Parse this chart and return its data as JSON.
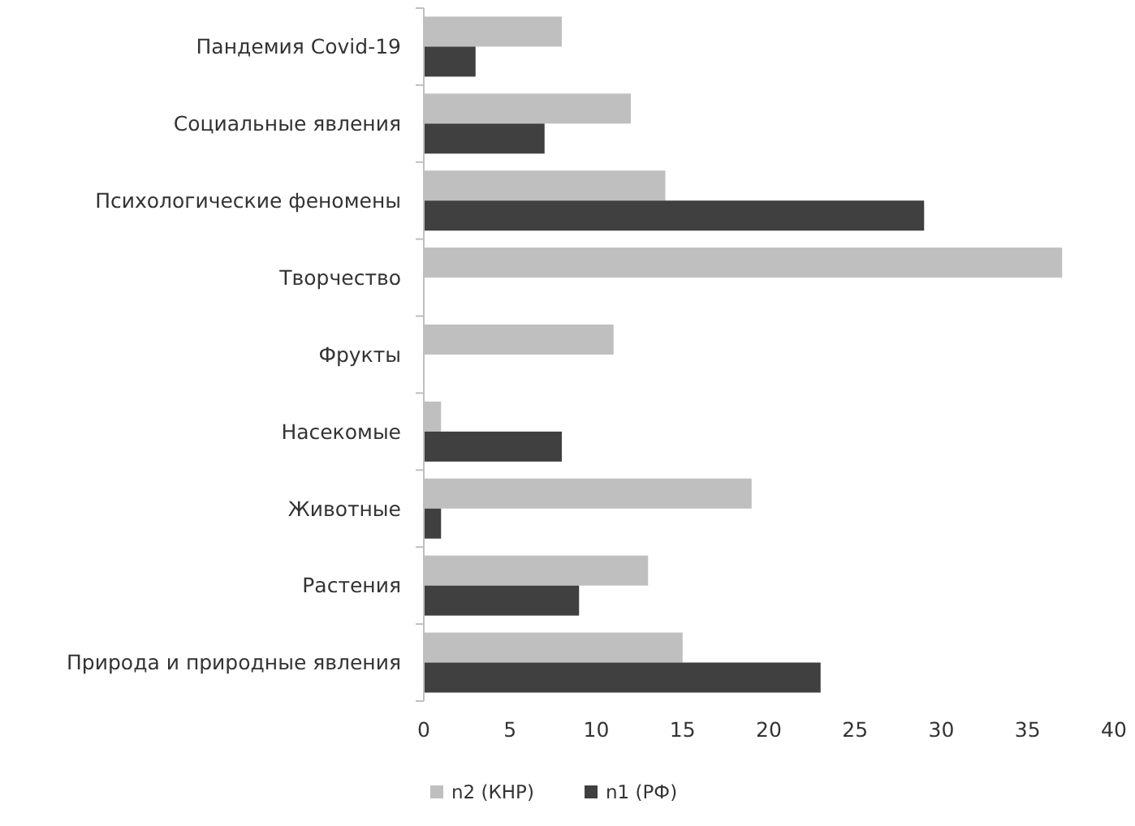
{
  "chart_data": {
    "type": "bar",
    "orientation": "horizontal",
    "categories": [
      "Пандемия Covid-19",
      "Социальные явления",
      "Психологические феномены",
      "Творчество",
      "Фрукты",
      "Насекомые",
      "Животные",
      "Растения",
      "Природа и природные явления"
    ],
    "series": [
      {
        "name": "n2 (КНР)",
        "color": "#bfbfbf",
        "values": [
          8,
          12,
          14,
          37,
          11,
          1,
          19,
          13,
          15
        ]
      },
      {
        "name": "n1 (РФ)",
        "color": "#404040",
        "values": [
          3,
          7,
          29,
          null,
          null,
          8,
          1,
          9,
          23
        ]
      }
    ],
    "xlim": [
      0,
      40
    ],
    "xticks": [
      0,
      5,
      10,
      15,
      20,
      25,
      30,
      35,
      40
    ],
    "grid": false,
    "legend": "bottom"
  }
}
